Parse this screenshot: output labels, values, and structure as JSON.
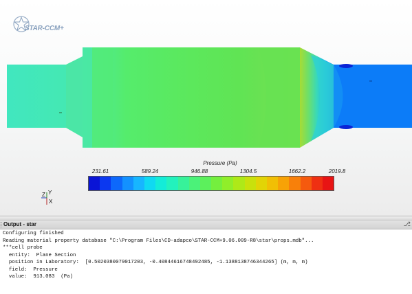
{
  "app": {
    "logo_text": "STAR-CCM+"
  },
  "colors": {
    "background_top": "#ffffff",
    "background_bottom": "#ececec",
    "duct_fill": "#46e8b8",
    "chamber_fill": "#5ce35a",
    "outlet_fill": "#0c7cf8"
  },
  "scene": {
    "legend": {
      "title": "Pressure (Pa)",
      "tick_labels": [
        "231.61",
        "589.24",
        "946.88",
        "1304.5",
        "1662.2",
        "2019.8"
      ],
      "min": 231.61,
      "max": 2019.8,
      "colormap": [
        "#0a14d6",
        "#0b38f0",
        "#0d68fb",
        "#1391ff",
        "#17b6ff",
        "#10d9f2",
        "#14ecd8",
        "#23f2bd",
        "#37f29a",
        "#4bf279",
        "#5cf05c",
        "#74ef3e",
        "#90ee2a",
        "#aee918",
        "#c9e10c",
        "#e2d406",
        "#f1bf05",
        "#f7a206",
        "#f8800a",
        "#f55a0e",
        "#ef3012",
        "#e81414"
      ]
    },
    "axes": {
      "z_label": "Z",
      "y_label": "Y",
      "x_label": "X"
    }
  },
  "output_panel": {
    "title": "Output - star",
    "pin_icon": "pin-icon",
    "lines": [
      "Configuring finished",
      "Reading material property database \"C:\\Program Files\\CD-adapco\\STAR-CCM+9.06.009-R8\\star\\props.mdb\"...",
      "***cell probe",
      "  entity:  Plane Section",
      "  position in Laboratory:  [0.5020380079017203, -0.40844616748492485, -1.1388138746344265] (m, m, m)",
      "  field:  Pressure",
      "  value:  913.083  (Pa)"
    ]
  }
}
